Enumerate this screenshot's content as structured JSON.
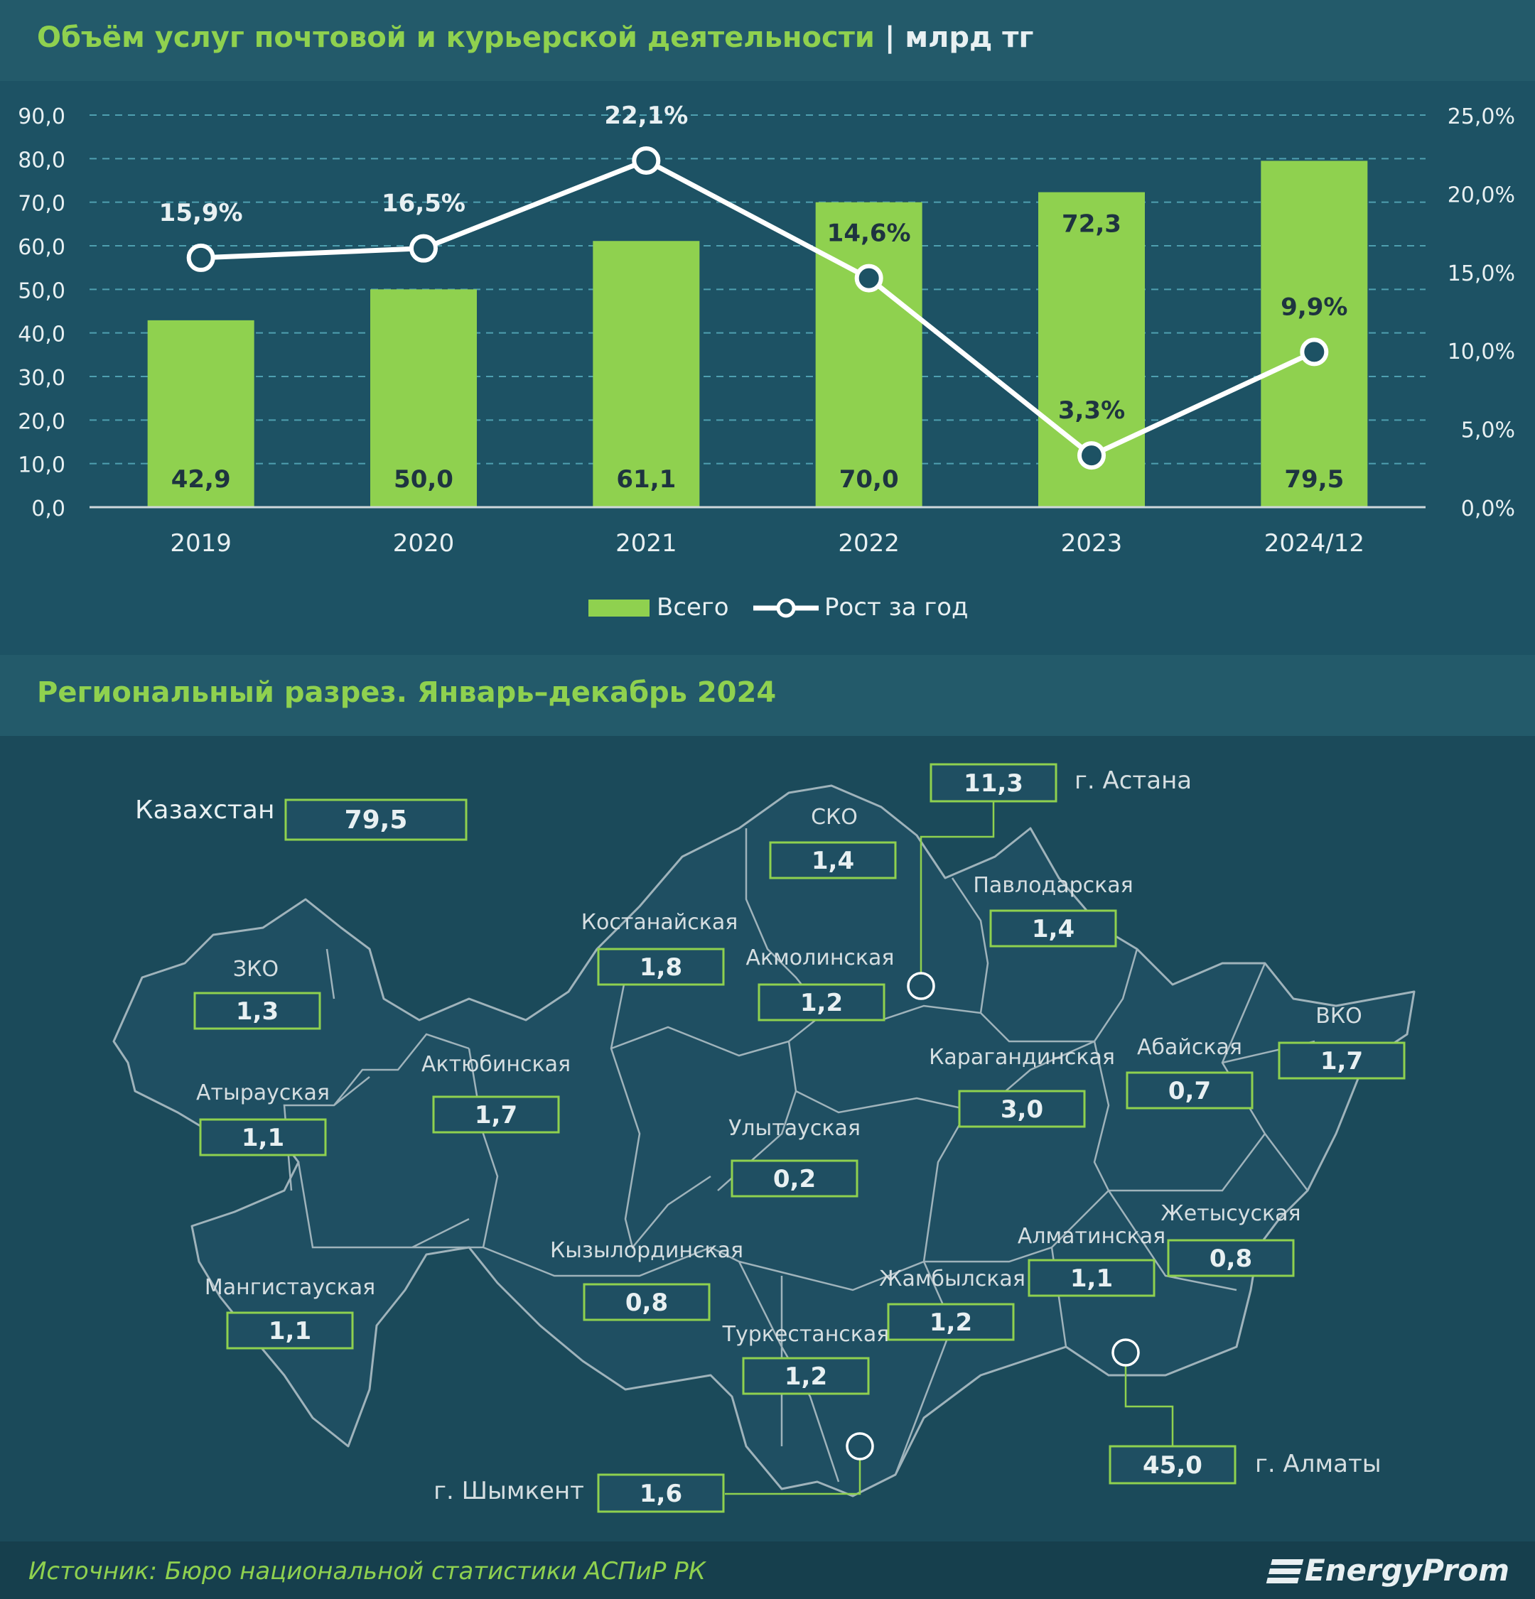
{
  "header": {
    "title": "Объём услуг почтовой и курьерской деятельности",
    "separator": "|",
    "unit": "млрд тг"
  },
  "colors": {
    "bar": "#8fd14f",
    "line": "#ffffff",
    "accent": "#8fd14f",
    "background": "#1b4a5a"
  },
  "chart_data": {
    "type": "bar",
    "categories": [
      "2019",
      "2020",
      "2021",
      "2022",
      "2023",
      "2024/12"
    ],
    "ylim": [
      0,
      90
    ],
    "y2lim": [
      0,
      25
    ],
    "y_ticks": [
      "0,0",
      "10,0",
      "20,0",
      "30,0",
      "40,0",
      "50,0",
      "60,0",
      "70,0",
      "80,0",
      "90,0"
    ],
    "y2_ticks": [
      "0,0%",
      "5,0%",
      "10,0%",
      "15,0%",
      "20,0%",
      "25,0%"
    ],
    "grid": true,
    "legend_position": "bottom",
    "series": [
      {
        "name": "Всего",
        "type": "bar",
        "values": [
          42.9,
          50.0,
          61.1,
          70.0,
          72.3,
          79.5
        ],
        "labels": [
          "42,9",
          "50,0",
          "61,1",
          "70,0",
          "72,3",
          "79,5"
        ]
      },
      {
        "name": "Рост за год",
        "type": "line",
        "axis": "secondary",
        "values": [
          15.9,
          16.5,
          22.1,
          14.6,
          3.3,
          9.9
        ],
        "labels": [
          "15,9%",
          "16,5%",
          "22,1%",
          "14,6%",
          "3,3%",
          "9,9%"
        ]
      }
    ]
  },
  "map": {
    "title": "Региональный разрез. Январь–декабрь 2024",
    "total": {
      "label": "Казахстан",
      "value": "79,5"
    },
    "regions": [
      {
        "name": "ЗКО",
        "value": "1,3"
      },
      {
        "name": "Атырауская",
        "value": "1,1"
      },
      {
        "name": "Мангистауская",
        "value": "1,1"
      },
      {
        "name": "Актюбинская",
        "value": "1,7"
      },
      {
        "name": "Костанайская",
        "value": "1,8"
      },
      {
        "name": "СКО",
        "value": "1,4"
      },
      {
        "name": "Акмолинская",
        "value": "1,2"
      },
      {
        "name": "Павлодарская",
        "value": "1,4"
      },
      {
        "name": "Карагандинская",
        "value": "3,0"
      },
      {
        "name": "Абайская",
        "value": "0,7"
      },
      {
        "name": "ВКО",
        "value": "1,7"
      },
      {
        "name": "Улытауская",
        "value": "0,2"
      },
      {
        "name": "Кызылординская",
        "value": "0,8"
      },
      {
        "name": "Туркестанская",
        "value": "1,2"
      },
      {
        "name": "Жамбылская",
        "value": "1,2"
      },
      {
        "name": "Алматинская",
        "value": "1,1"
      },
      {
        "name": "Жетысуская",
        "value": "0,8"
      }
    ],
    "cities": [
      {
        "name": "г. Астана",
        "value": "11,3"
      },
      {
        "name": "г. Алматы",
        "value": "45,0"
      },
      {
        "name": "г. Шымкент",
        "value": "1,6"
      }
    ]
  },
  "footer": {
    "source": "Источник: Бюро национальной статистики АСПиР РК",
    "logo": "EnergyProm",
    "logo_icon": "energyprom-logo-icon"
  }
}
